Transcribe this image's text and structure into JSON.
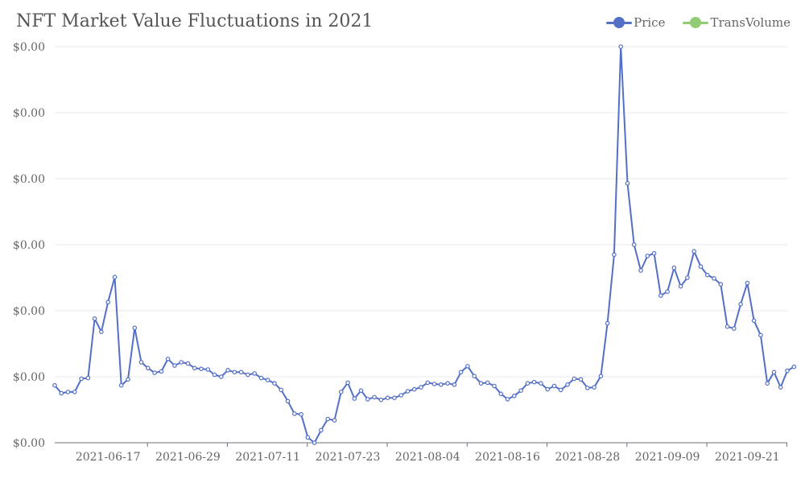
{
  "chart_data": {
    "type": "line",
    "title": "NFT Market Value Fluctuations in 2021",
    "legend_position": "top-right",
    "grid": true,
    "y_tick_labels": [
      "$0.00",
      "$0.00",
      "$0.00",
      "$0.00",
      "$0.00",
      "$0.00",
      "$0.00"
    ],
    "x_tick_labels": [
      "2021-06-17",
      "2021-06-29",
      "2021-07-11",
      "2021-07-23",
      "2021-08-04",
      "2021-08-16",
      "2021-08-28",
      "2021-09-09",
      "2021-09-21"
    ],
    "x_start": "2021-06-09",
    "x_end": "2021-09-27",
    "ylim": [
      0,
      6
    ],
    "series": [
      {
        "name": "Price",
        "color": "#5470c6",
        "values": [
          0.87,
          0.75,
          0.77,
          0.77,
          0.97,
          0.98,
          1.88,
          1.68,
          2.13,
          2.51,
          0.87,
          0.96,
          1.74,
          1.22,
          1.13,
          1.06,
          1.08,
          1.27,
          1.17,
          1.22,
          1.2,
          1.13,
          1.12,
          1.11,
          1.03,
          1.0,
          1.1,
          1.07,
          1.07,
          1.03,
          1.05,
          0.98,
          0.95,
          0.9,
          0.8,
          0.63,
          0.44,
          0.43,
          0.08,
          0.0,
          0.19,
          0.36,
          0.34,
          0.77,
          0.91,
          0.67,
          0.79,
          0.66,
          0.69,
          0.65,
          0.68,
          0.68,
          0.72,
          0.78,
          0.81,
          0.84,
          0.91,
          0.89,
          0.88,
          0.9,
          0.88,
          1.07,
          1.16,
          1.01,
          0.9,
          0.91,
          0.86,
          0.74,
          0.66,
          0.71,
          0.79,
          0.9,
          0.92,
          0.9,
          0.81,
          0.86,
          0.8,
          0.88,
          0.97,
          0.96,
          0.83,
          0.84,
          1.01,
          1.81,
          2.85,
          6.0,
          3.93,
          3.0,
          2.61,
          2.83,
          2.87,
          2.23,
          2.29,
          2.65,
          2.37,
          2.5,
          2.9,
          2.67,
          2.54,
          2.49,
          2.4,
          1.76,
          1.73,
          2.1,
          2.42,
          1.85,
          1.63,
          0.9,
          1.07,
          0.84,
          1.09,
          1.15
        ]
      },
      {
        "name": "TransVolume",
        "color": "#91cc75",
        "values": []
      }
    ]
  }
}
